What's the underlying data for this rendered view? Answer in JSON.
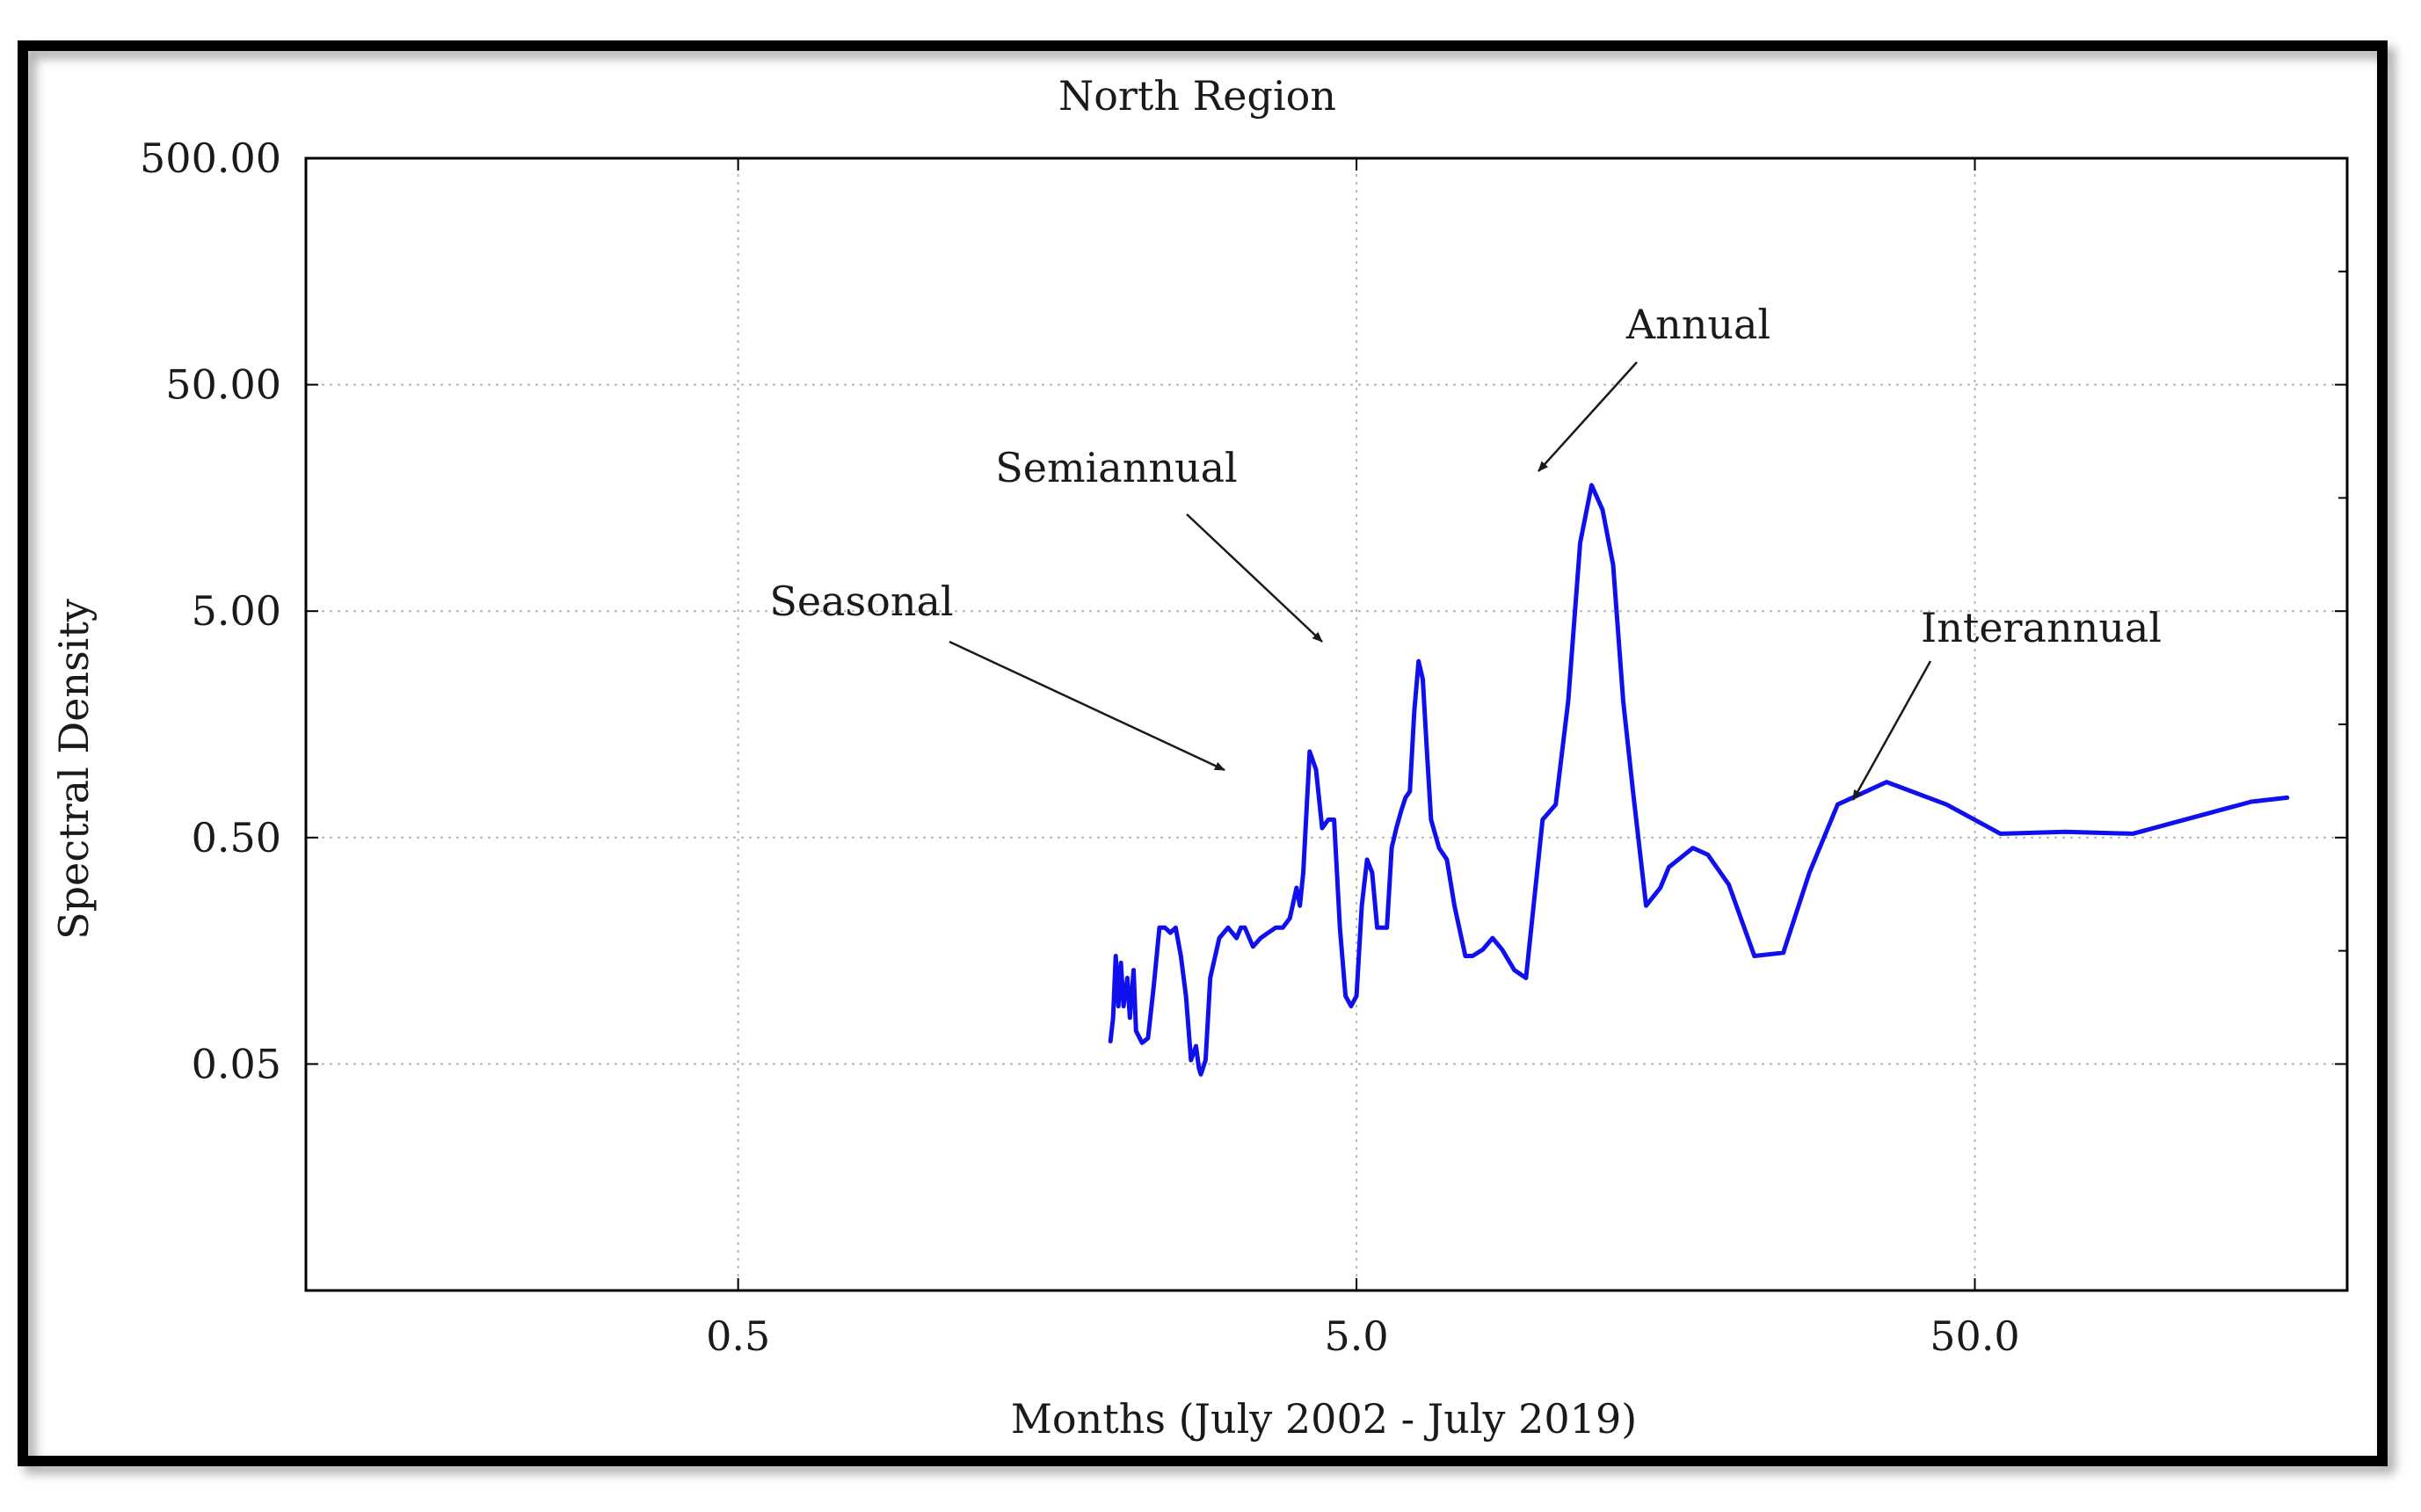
{
  "chart_data": {
    "type": "line",
    "title": "North Region",
    "xlabel": "Months (July 2002 - July 2019)",
    "ylabel": "Spectral Density",
    "x_scale": "log",
    "y_scale": "log",
    "xlim": [
      0.1,
      200
    ],
    "ylim": [
      0.005,
      500
    ],
    "x_ticks": [
      {
        "value": 0.5,
        "label": "0.5"
      },
      {
        "value": 5,
        "label": "5.0"
      },
      {
        "value": 50,
        "label": "50.0"
      }
    ],
    "y_ticks": [
      {
        "value": 0.05,
        "label": "0.05"
      },
      {
        "value": 0.5,
        "label": "0.50"
      },
      {
        "value": 5,
        "label": "5.00"
      },
      {
        "value": 50,
        "label": "50.00"
      },
      {
        "value": 500,
        "label": "500.00"
      }
    ],
    "grid": true,
    "series": [
      {
        "name": "Spectral Density",
        "color": "#1010ee",
        "points": [
          [
            2.0,
            0.063
          ],
          [
            2.02,
            0.08
          ],
          [
            2.04,
            0.15
          ],
          [
            2.06,
            0.09
          ],
          [
            2.08,
            0.14
          ],
          [
            2.1,
            0.09
          ],
          [
            2.13,
            0.12
          ],
          [
            2.15,
            0.08
          ],
          [
            2.18,
            0.13
          ],
          [
            2.2,
            0.07
          ],
          [
            2.25,
            0.062
          ],
          [
            2.3,
            0.065
          ],
          [
            2.35,
            0.11
          ],
          [
            2.4,
            0.2
          ],
          [
            2.45,
            0.2
          ],
          [
            2.5,
            0.19
          ],
          [
            2.55,
            0.2
          ],
          [
            2.6,
            0.15
          ],
          [
            2.65,
            0.1
          ],
          [
            2.7,
            0.052
          ],
          [
            2.72,
            0.055
          ],
          [
            2.75,
            0.06
          ],
          [
            2.78,
            0.048
          ],
          [
            2.8,
            0.045
          ],
          [
            2.85,
            0.052
          ],
          [
            2.9,
            0.12
          ],
          [
            3.0,
            0.18
          ],
          [
            3.1,
            0.2
          ],
          [
            3.2,
            0.18
          ],
          [
            3.25,
            0.2
          ],
          [
            3.3,
            0.2
          ],
          [
            3.4,
            0.165
          ],
          [
            3.5,
            0.18
          ],
          [
            3.6,
            0.19
          ],
          [
            3.7,
            0.2
          ],
          [
            3.8,
            0.2
          ],
          [
            3.9,
            0.22
          ],
          [
            4.0,
            0.3
          ],
          [
            4.05,
            0.25
          ],
          [
            4.1,
            0.35
          ],
          [
            4.2,
            1.2
          ],
          [
            4.3,
            1.0
          ],
          [
            4.4,
            0.55
          ],
          [
            4.5,
            0.6
          ],
          [
            4.6,
            0.6
          ],
          [
            4.7,
            0.2
          ],
          [
            4.8,
            0.1
          ],
          [
            4.9,
            0.09
          ],
          [
            5.0,
            0.1
          ],
          [
            5.1,
            0.25
          ],
          [
            5.2,
            0.4
          ],
          [
            5.3,
            0.35
          ],
          [
            5.4,
            0.2
          ],
          [
            5.5,
            0.2
          ],
          [
            5.6,
            0.2
          ],
          [
            5.7,
            0.45
          ],
          [
            5.8,
            0.55
          ],
          [
            5.9,
            0.65
          ],
          [
            6.0,
            0.75
          ],
          [
            6.1,
            0.8
          ],
          [
            6.2,
            1.8
          ],
          [
            6.3,
            3.0
          ],
          [
            6.4,
            2.5
          ],
          [
            6.5,
            1.2
          ],
          [
            6.6,
            0.6
          ],
          [
            6.8,
            0.45
          ],
          [
            7.0,
            0.4
          ],
          [
            7.2,
            0.25
          ],
          [
            7.5,
            0.15
          ],
          [
            7.7,
            0.15
          ],
          [
            8.0,
            0.16
          ],
          [
            8.3,
            0.18
          ],
          [
            8.6,
            0.16
          ],
          [
            9.0,
            0.13
          ],
          [
            9.4,
            0.12
          ],
          [
            10.0,
            0.6
          ],
          [
            10.5,
            0.7
          ],
          [
            11.0,
            2.0
          ],
          [
            11.5,
            10.0
          ],
          [
            12.0,
            18.0
          ],
          [
            12.5,
            14.0
          ],
          [
            13.0,
            8.0
          ],
          [
            13.5,
            2.0
          ],
          [
            14.0,
            0.8
          ],
          [
            14.7,
            0.25
          ],
          [
            15.5,
            0.3
          ],
          [
            16.0,
            0.37
          ],
          [
            17.5,
            0.45
          ],
          [
            18.5,
            0.42
          ],
          [
            20.0,
            0.31
          ],
          [
            22.0,
            0.15
          ],
          [
            24.5,
            0.155
          ],
          [
            27.0,
            0.35
          ],
          [
            30.0,
            0.7
          ],
          [
            36.0,
            0.88
          ],
          [
            45.0,
            0.7
          ],
          [
            55.0,
            0.52
          ],
          [
            70.0,
            0.53
          ],
          [
            90.0,
            0.52
          ],
          [
            140.0,
            0.72
          ],
          [
            160.0,
            0.75
          ]
        ]
      }
    ],
    "annotations": [
      {
        "text": "Seasonal",
        "target": [
          4.1,
          1.2
        ]
      },
      {
        "text": "Semiannual",
        "target": [
          6.0,
          5.0
        ]
      },
      {
        "text": "Annual",
        "target": [
          12.0,
          25.0
        ]
      },
      {
        "text": "Interannual",
        "target": [
          36.0,
          1.0
        ]
      }
    ]
  }
}
